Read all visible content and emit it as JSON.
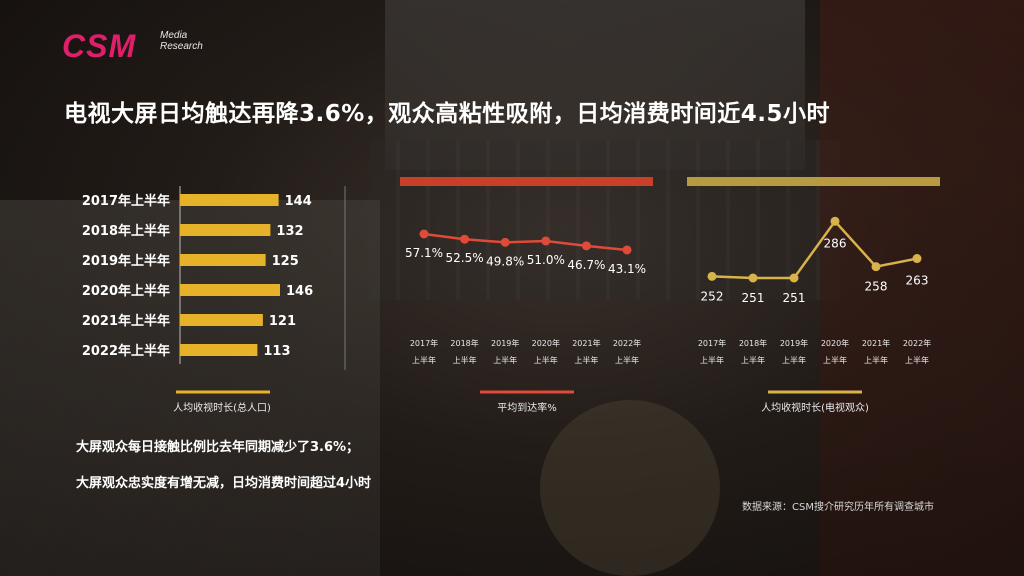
{
  "logo": {
    "brand": "CSM",
    "sub": "Media\nResearch"
  },
  "title": "电视大屏日均触达再降3.6%，观众高粘性吸附，日均消费时间近4.5小时",
  "colors": {
    "bar": "#e5b229",
    "reach_band": "#c9402a",
    "reach_line": "#e04a38",
    "time_band": "#b89a40",
    "time_line": "#d8b24a"
  },
  "chart_data": [
    {
      "type": "bar",
      "orientation": "horizontal",
      "categories": [
        "2017年上半年",
        "2018年上半年",
        "2019年上半年",
        "2020年上半年",
        "2021年上半年",
        "2022年上半年"
      ],
      "values": [
        144,
        132,
        125,
        146,
        121,
        113
      ],
      "legend": "人均收视时长(总人口)"
    },
    {
      "type": "line",
      "categories": [
        "2017年\n上半年",
        "2018年\n上半年",
        "2019年\n上半年",
        "2020年\n上半年",
        "2021年\n上半年",
        "2022年\n上半年"
      ],
      "values": [
        57.1,
        52.5,
        49.8,
        51.0,
        46.7,
        43.1
      ],
      "value_labels": [
        "57.1%",
        "52.5%",
        "49.8%",
        "51.0%",
        "46.7%",
        "43.1%"
      ],
      "legend": "平均到达率%"
    },
    {
      "type": "line",
      "categories": [
        "2017年\n上半年",
        "2018年\n上半年",
        "2019年\n上半年",
        "2020年\n上半年",
        "2021年\n上半年",
        "2022年\n上半年"
      ],
      "values": [
        252,
        251,
        251,
        286,
        258,
        263
      ],
      "legend": "人均收视时长(电视观众)"
    }
  ],
  "notes": [
    "大屏观众每日接触比例比去年同期减少了3.6%；",
    "大屏观众忠实度有增无减，日均消费时间超过4小时"
  ],
  "source": "数据来源：CSM搜介研究历年所有调查城市"
}
